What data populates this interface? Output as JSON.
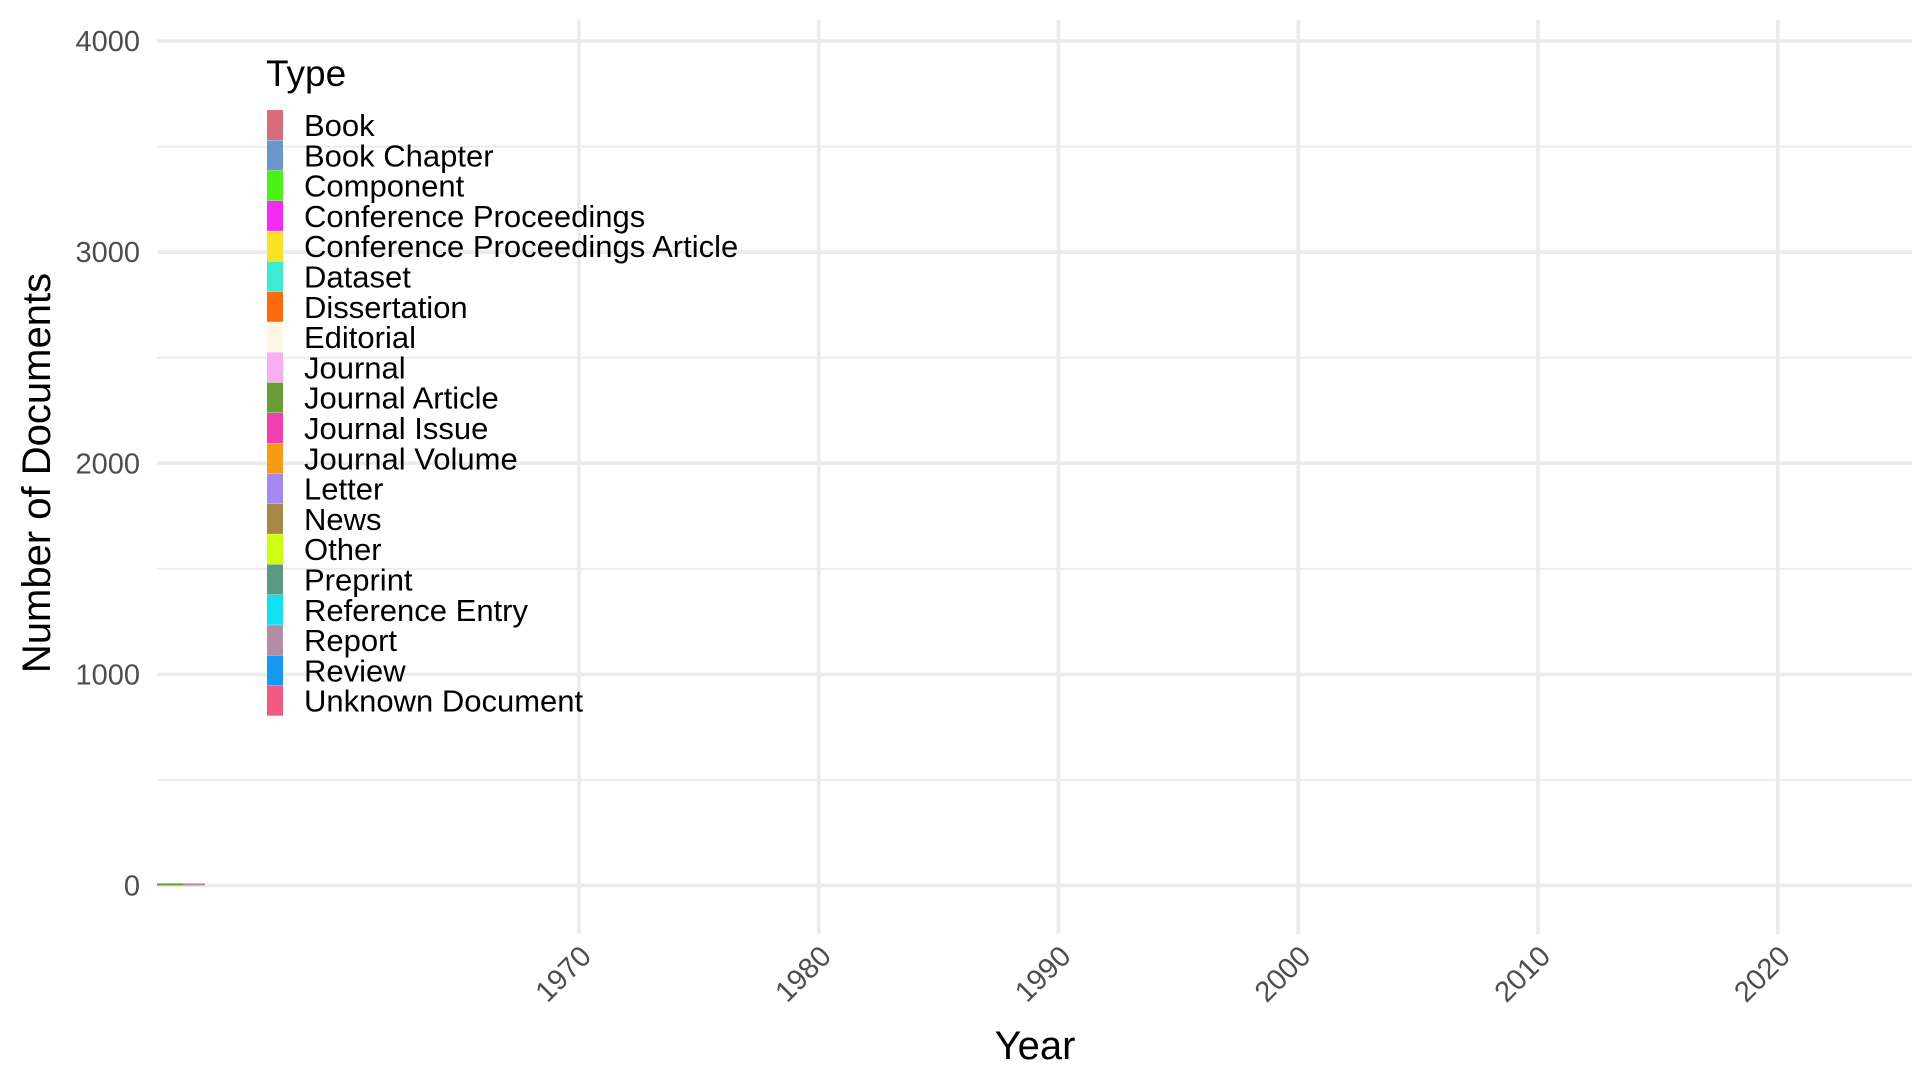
{
  "chart_data": {
    "type": "area",
    "title": "",
    "xlabel": "Year",
    "ylabel": "Number of Documents",
    "xlim": [
      1952.4,
      2025.6
    ],
    "ylim": [
      -230,
      4100
    ],
    "x_ticks": [
      1970,
      1980,
      1990,
      2000,
      2010,
      2020
    ],
    "x_tick_labels": [
      "1970",
      "1980",
      "1990",
      "2000",
      "2010",
      "2020"
    ],
    "y_ticks": [
      0,
      1000,
      2000,
      3000,
      4000
    ],
    "y_tick_labels": [
      "0",
      "1000",
      "2000",
      "3000",
      "4000"
    ],
    "y_minor_ticks": [
      500,
      1500,
      2500,
      3500
    ],
    "grid": true,
    "legend": {
      "title": "Type",
      "position": "top-left",
      "entries": [
        {
          "label": "Book",
          "color": "#D96B7A"
        },
        {
          "label": "Book Chapter",
          "color": "#6B96C8"
        },
        {
          "label": "Component",
          "color": "#4DF018"
        },
        {
          "label": "Conference Proceedings",
          "color": "#F52AF0"
        },
        {
          "label": "Conference Proceedings Article",
          "color": "#FCE226"
        },
        {
          "label": "Dataset",
          "color": "#3CEBD2"
        },
        {
          "label": "Dissertation",
          "color": "#FF6A0D"
        },
        {
          "label": "Editorial",
          "color": "#FDF7E3"
        },
        {
          "label": "Journal",
          "color": "#F9AEF2"
        },
        {
          "label": "Journal Article",
          "color": "#6A9E35"
        },
        {
          "label": "Journal Issue",
          "color": "#F23FB0"
        },
        {
          "label": "Journal Volume",
          "color": "#F79B17"
        },
        {
          "label": "Letter",
          "color": "#A588F2"
        },
        {
          "label": "News",
          "color": "#A8884A"
        },
        {
          "label": "Other",
          "color": "#CCFF10"
        },
        {
          "label": "Preprint",
          "color": "#5A9A82"
        },
        {
          "label": "Reference Entry",
          "color": "#13E0F2"
        },
        {
          "label": "Report",
          "color": "#B38EA2"
        },
        {
          "label": "Review",
          "color": "#1598F2"
        },
        {
          "label": "Unknown Document",
          "color": "#F25A84"
        }
      ]
    },
    "series": [
      {
        "name": "Journal Article",
        "x": [
          1952.4,
          1953.5
        ],
        "values": [
          5,
          5
        ],
        "color": "#6A9E35"
      },
      {
        "name": "Report",
        "x": [
          1953.5,
          1954.4
        ],
        "values": [
          5,
          5
        ],
        "color": "#B38EA2"
      }
    ]
  }
}
